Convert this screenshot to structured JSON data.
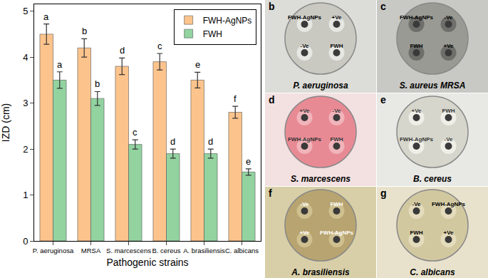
{
  "chart_data": {
    "type": "bar",
    "xlabel": "Pathogenic strains",
    "ylabel": "IZD (cm)",
    "categories": [
      "P. aeruginosa",
      "MRSA",
      "S. marcescens",
      "B. cereus",
      "A. brasiliensis",
      "C. albicans"
    ],
    "series": [
      {
        "name": "FWH-AgNPs",
        "color": "#fcc48c",
        "values": [
          4.5,
          4.2,
          3.8,
          3.9,
          3.5,
          2.8
        ],
        "errors": [
          0.22,
          0.2,
          0.18,
          0.18,
          0.17,
          0.13
        ],
        "annotations": [
          "a",
          "b",
          "d",
          "c",
          "e",
          "f"
        ]
      },
      {
        "name": "FWH",
        "color": "#92d3a0",
        "values": [
          3.5,
          3.1,
          2.1,
          1.9,
          1.9,
          1.5
        ],
        "errors": [
          0.18,
          0.15,
          0.1,
          0.1,
          0.1,
          0.07
        ],
        "annotations": [
          "a",
          "b",
          "c",
          "d",
          "d",
          "e"
        ]
      }
    ],
    "ylim": [
      0,
      5.15
    ],
    "yticks": [
      0,
      1,
      2,
      3,
      4,
      5
    ],
    "grid": false,
    "legend": "top-right"
  },
  "photo_panels": [
    {
      "letter": "b",
      "caption": "P. aeruginosa",
      "wells": [
        "FWH-AgNPs",
        "+Ve",
        "-Ve",
        "FWH"
      ]
    },
    {
      "letter": "c",
      "caption": "S. aureus MRSA",
      "wells": [
        "FWH-AgNPs",
        "-Ve",
        "FWH",
        "+Ve"
      ]
    },
    {
      "letter": "d",
      "caption": "S. marcescens",
      "wells": [
        "+Ve",
        "-Ve",
        "FWH-AgNPs",
        "FWH"
      ]
    },
    {
      "letter": "e",
      "caption": "B. cereus",
      "wells": [
        "+Ve",
        "FWH",
        "FWH-AgNPs",
        "-Ve"
      ]
    },
    {
      "letter": "f",
      "caption": "A. brasiliensis",
      "wells": [
        "-Ve",
        "FWH",
        "+Ve",
        "FWH-AgNPs"
      ]
    },
    {
      "letter": "g",
      "caption": "C. albicans",
      "wells": [
        "-Ve",
        "FWH-AgNPs",
        "FWH",
        "+Ve"
      ]
    }
  ]
}
